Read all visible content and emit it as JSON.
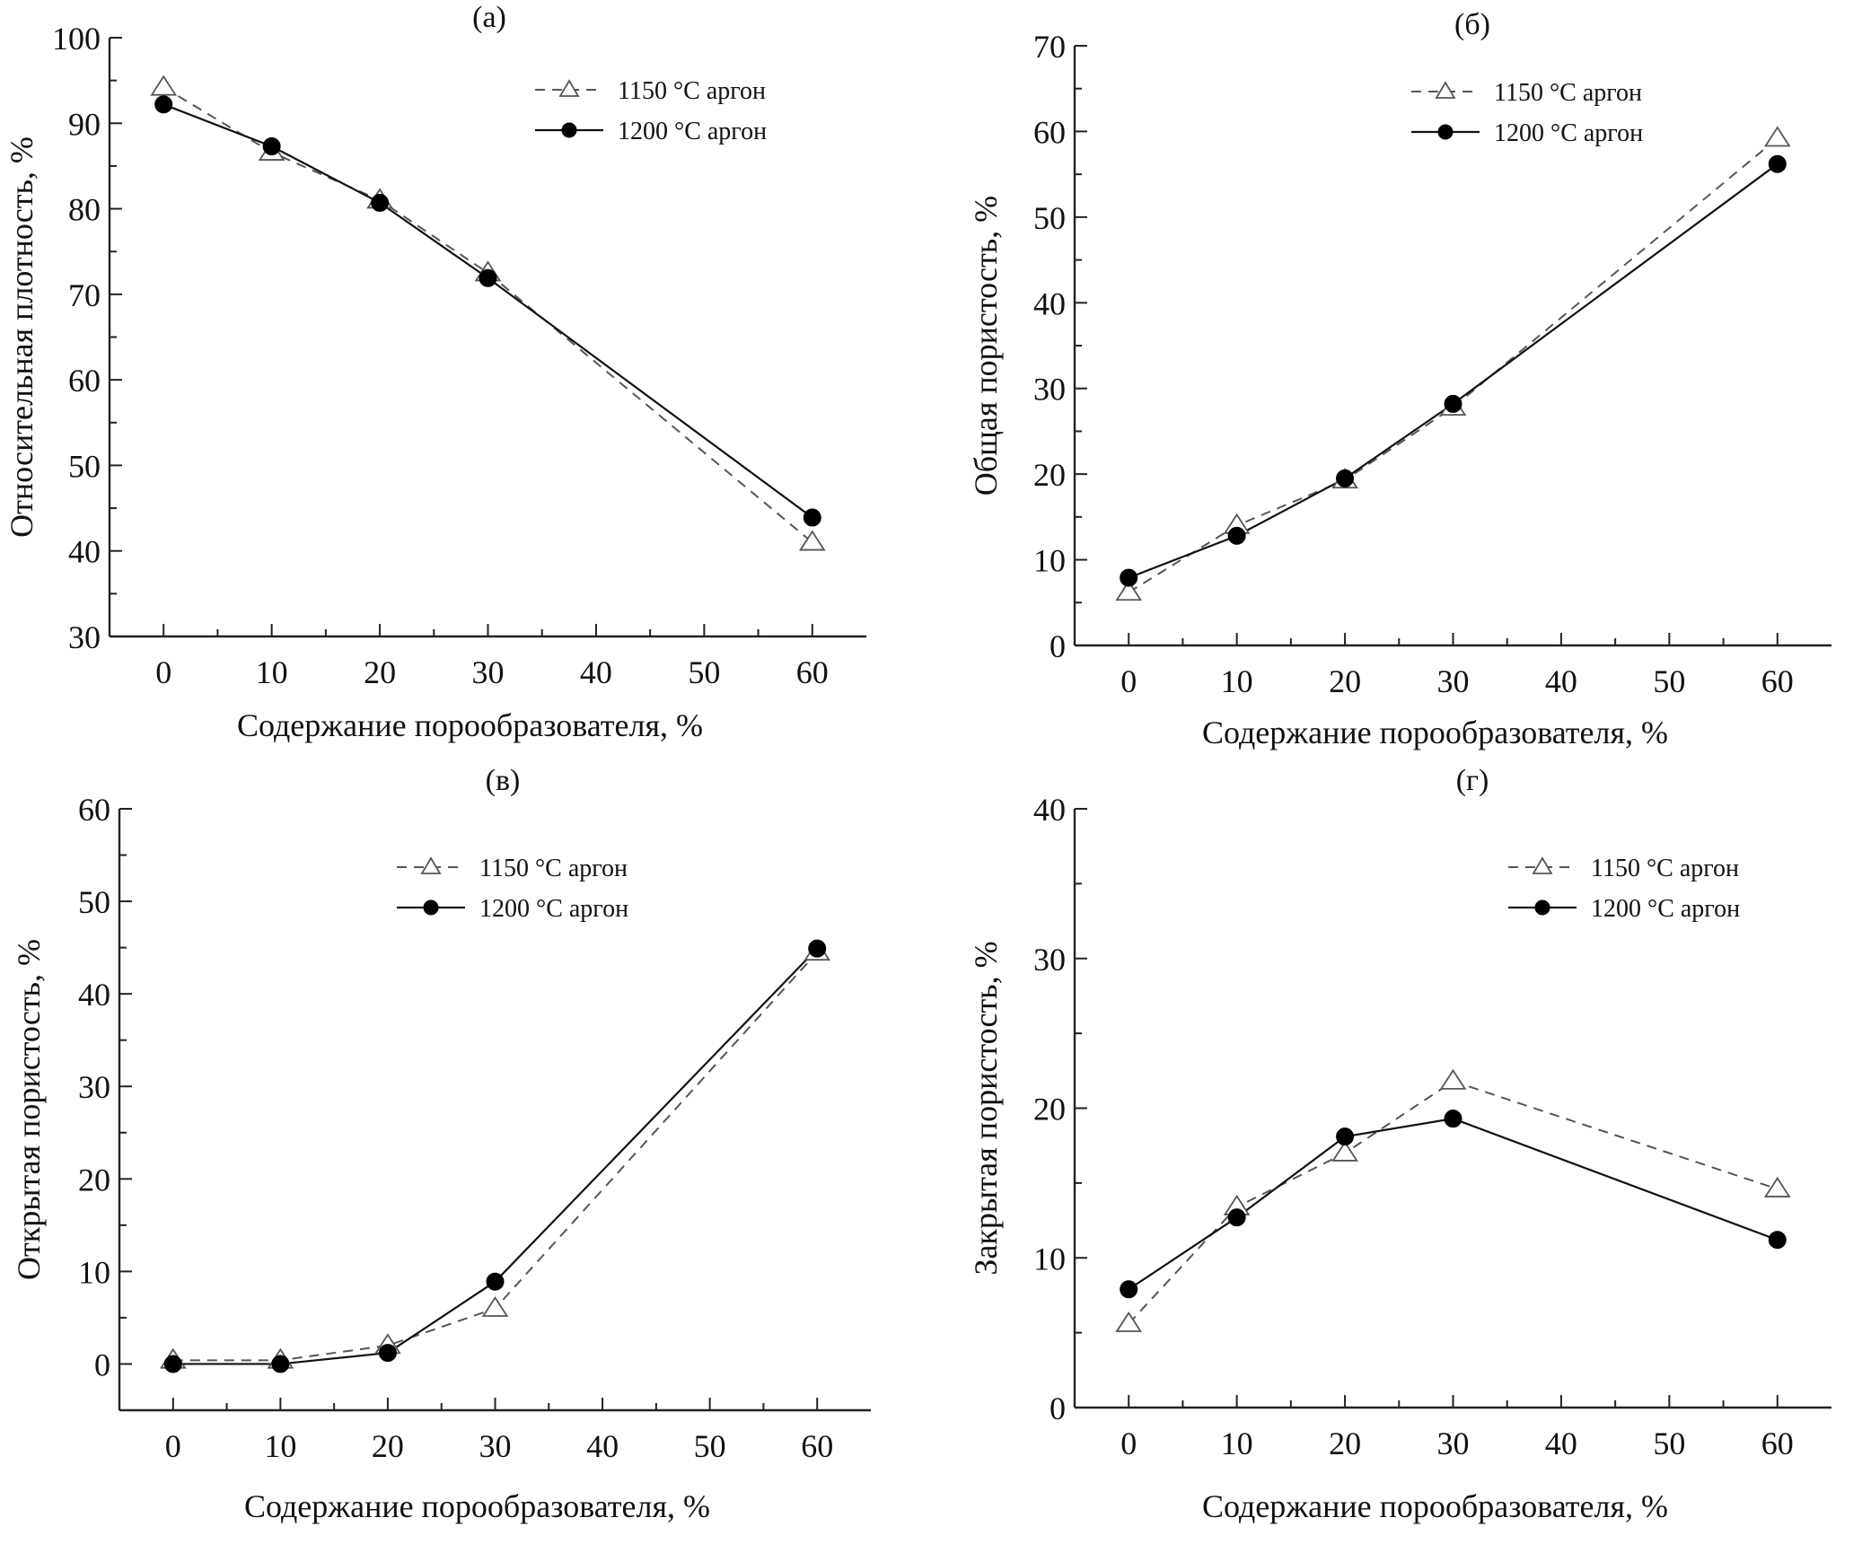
{
  "figure": {
    "legend": {
      "series_1150": "1150 °C аргон",
      "series_1200": "1200 °C аргон"
    }
  },
  "chart_data": [
    {
      "id": "a",
      "type": "line",
      "title": "(а)",
      "xlabel": "Содержание порообразователя, %",
      "ylabel": "Относительная плотность, %",
      "xlim": [
        -5,
        65
      ],
      "ylim": [
        30,
        100
      ],
      "xticks": [
        0,
        10,
        20,
        30,
        40,
        50,
        60
      ],
      "yticks": [
        30,
        40,
        50,
        60,
        70,
        80,
        90,
        100
      ],
      "grid": false,
      "legend_position": "top-right",
      "x": [
        0,
        10,
        20,
        30,
        60
      ],
      "series": [
        {
          "name": "1150 °C аргон",
          "style": "dashed",
          "marker": "open-triangle",
          "values": [
            94.2,
            86.6,
            81.0,
            72.5,
            41.0
          ]
        },
        {
          "name": "1200 °C аргон",
          "style": "solid",
          "marker": "filled-circle",
          "values": [
            92.2,
            87.3,
            80.7,
            71.9,
            43.9
          ]
        }
      ]
    },
    {
      "id": "b",
      "type": "line",
      "title": "(б)",
      "xlabel": "Содержание порообразователя, %",
      "ylabel": "Общая пористость, %",
      "xlim": [
        -5,
        65
      ],
      "ylim": [
        0,
        70
      ],
      "xticks": [
        0,
        10,
        20,
        30,
        40,
        50,
        60
      ],
      "yticks": [
        0,
        10,
        20,
        30,
        40,
        50,
        60,
        70
      ],
      "grid": false,
      "legend_position": "top-right",
      "x": [
        0,
        10,
        20,
        30,
        60
      ],
      "series": [
        {
          "name": "1150 °C аргон",
          "style": "dashed",
          "marker": "open-triangle",
          "values": [
            6.2,
            14.0,
            19.3,
            27.8,
            59.2
          ]
        },
        {
          "name": "1200 °C аргон",
          "style": "solid",
          "marker": "filled-circle",
          "values": [
            7.9,
            12.8,
            19.5,
            28.2,
            56.2
          ]
        }
      ]
    },
    {
      "id": "v",
      "type": "line",
      "title": "(в)",
      "xlabel": "Содержание порообразователя, %",
      "ylabel": "Открытая пористость, %",
      "xlim": [
        -5,
        65
      ],
      "ylim": [
        -5,
        60
      ],
      "xticks": [
        0,
        10,
        20,
        30,
        40,
        50,
        60
      ],
      "yticks": [
        0,
        10,
        20,
        30,
        40,
        50,
        60
      ],
      "grid": false,
      "legend_position": "top-center",
      "x": [
        0,
        10,
        20,
        30,
        60
      ],
      "series": [
        {
          "name": "1150 °C аргон",
          "style": "dashed",
          "marker": "open-triangle",
          "values": [
            0.4,
            0.4,
            2.0,
            6.0,
            44.5
          ]
        },
        {
          "name": "1200 °C аргон",
          "style": "solid",
          "marker": "filled-circle",
          "values": [
            0.0,
            0.0,
            1.2,
            8.9,
            44.9
          ]
        }
      ]
    },
    {
      "id": "g",
      "type": "line",
      "title": "(г)",
      "xlabel": "Содержание порообразователя, %",
      "ylabel": "Закрытая пористость, %",
      "xlim": [
        -5,
        65
      ],
      "ylim": [
        0,
        40
      ],
      "xticks": [
        0,
        10,
        20,
        30,
        40,
        50,
        60
      ],
      "yticks": [
        0,
        10,
        20,
        30,
        40
      ],
      "grid": false,
      "legend_position": "top-right",
      "x": [
        0,
        10,
        20,
        30,
        60
      ],
      "series": [
        {
          "name": "1150 °C аргон",
          "style": "dashed",
          "marker": "open-triangle",
          "values": [
            5.6,
            13.4,
            17.0,
            21.8,
            14.6
          ]
        },
        {
          "name": "1200 °C аргон",
          "style": "solid",
          "marker": "filled-circle",
          "values": [
            7.9,
            12.7,
            18.1,
            19.3,
            11.2
          ]
        }
      ]
    }
  ]
}
